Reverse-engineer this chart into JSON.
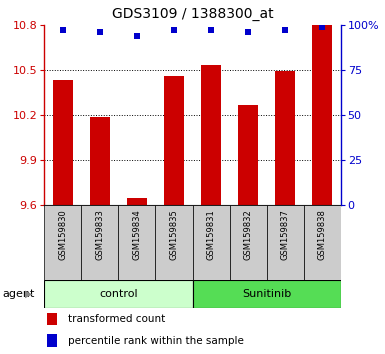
{
  "title": "GDS3109 / 1388300_at",
  "samples": [
    "GSM159830",
    "GSM159833",
    "GSM159834",
    "GSM159835",
    "GSM159831",
    "GSM159832",
    "GSM159837",
    "GSM159838"
  ],
  "bar_values": [
    10.43,
    10.19,
    9.65,
    10.46,
    10.53,
    10.27,
    10.49,
    10.8
  ],
  "percentile_values": [
    97,
    96,
    94,
    97,
    97,
    96,
    97,
    99
  ],
  "bar_color": "#cc0000",
  "dot_color": "#0000cc",
  "ylim_left": [
    9.6,
    10.8
  ],
  "ylim_right": [
    0,
    100
  ],
  "yticks_left": [
    9.6,
    9.9,
    10.2,
    10.5,
    10.8
  ],
  "yticks_right": [
    0,
    25,
    50,
    75,
    100
  ],
  "ytick_labels_left": [
    "9.6",
    "9.9",
    "10.2",
    "10.5",
    "10.8"
  ],
  "ytick_labels_right": [
    "0",
    "25",
    "50",
    "75",
    "100%"
  ],
  "groups": [
    {
      "label": "control",
      "indices": [
        0,
        1,
        2,
        3
      ],
      "color": "#ccffcc"
    },
    {
      "label": "Sunitinib",
      "indices": [
        4,
        5,
        6,
        7
      ],
      "color": "#55dd55"
    }
  ],
  "group_bar_facecolor": "#cccccc",
  "agent_label": "agent",
  "legend_bar_label": "transformed count",
  "legend_dot_label": "percentile rank within the sample",
  "bar_width": 0.55
}
